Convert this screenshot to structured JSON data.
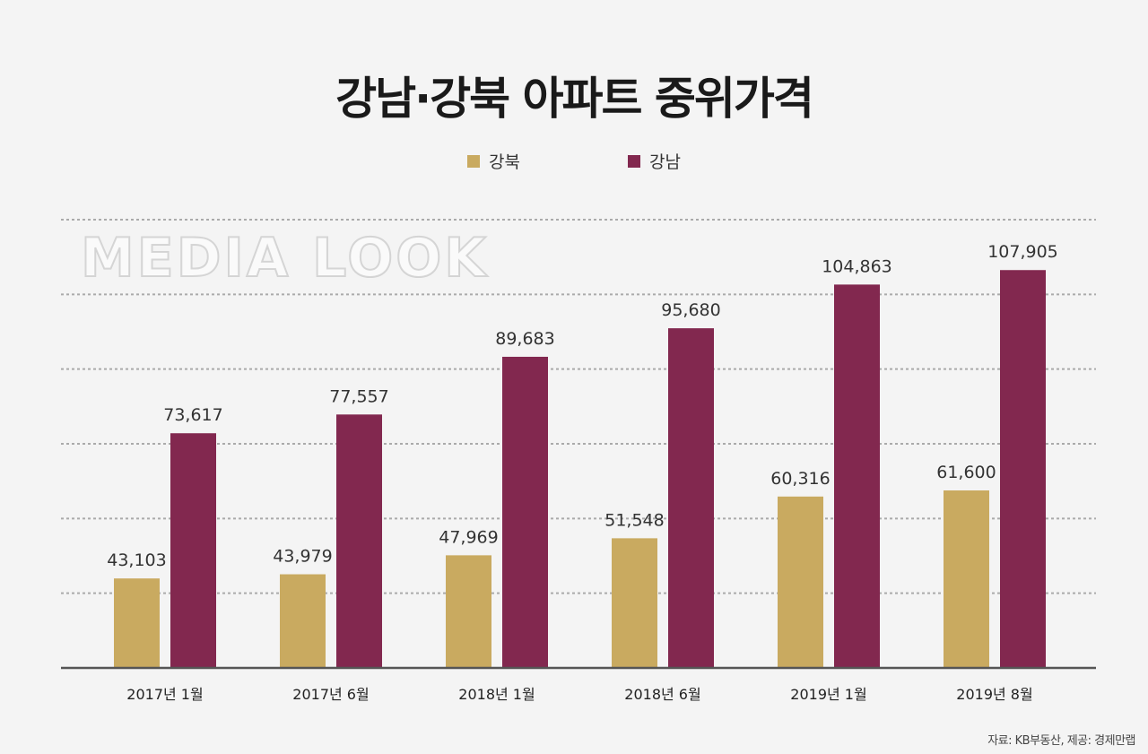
{
  "chart_data": {
    "type": "bar",
    "title": "강남·강북 아파트 중위가격",
    "categories": [
      "2017년 1월",
      "2017년 6월",
      "2018년 1월",
      "2018년 6월",
      "2019년 1월",
      "2019년 8월"
    ],
    "series": [
      {
        "name": "강북",
        "color": "#c9aa60",
        "values": [
          43103,
          43979,
          47969,
          51548,
          60316,
          61600
        ],
        "labels": [
          "43,103",
          "43,979",
          "47,969",
          "51,548",
          "60,316",
          "61,600"
        ]
      },
      {
        "name": "강남",
        "color": "#82284f",
        "values": [
          73617,
          77557,
          89683,
          95680,
          104863,
          107905
        ],
        "labels": [
          "73,617",
          "77,557",
          "89,683",
          "95,680",
          "104,863",
          "107,905"
        ]
      }
    ],
    "xlabel": "",
    "ylabel": "",
    "ylim": [
      24300,
      118500
    ],
    "grid": true,
    "legend_position": "top-center"
  },
  "source": "자료: KB부동산, 제공: 경제만랩",
  "watermark": "MEDIA LOOK"
}
